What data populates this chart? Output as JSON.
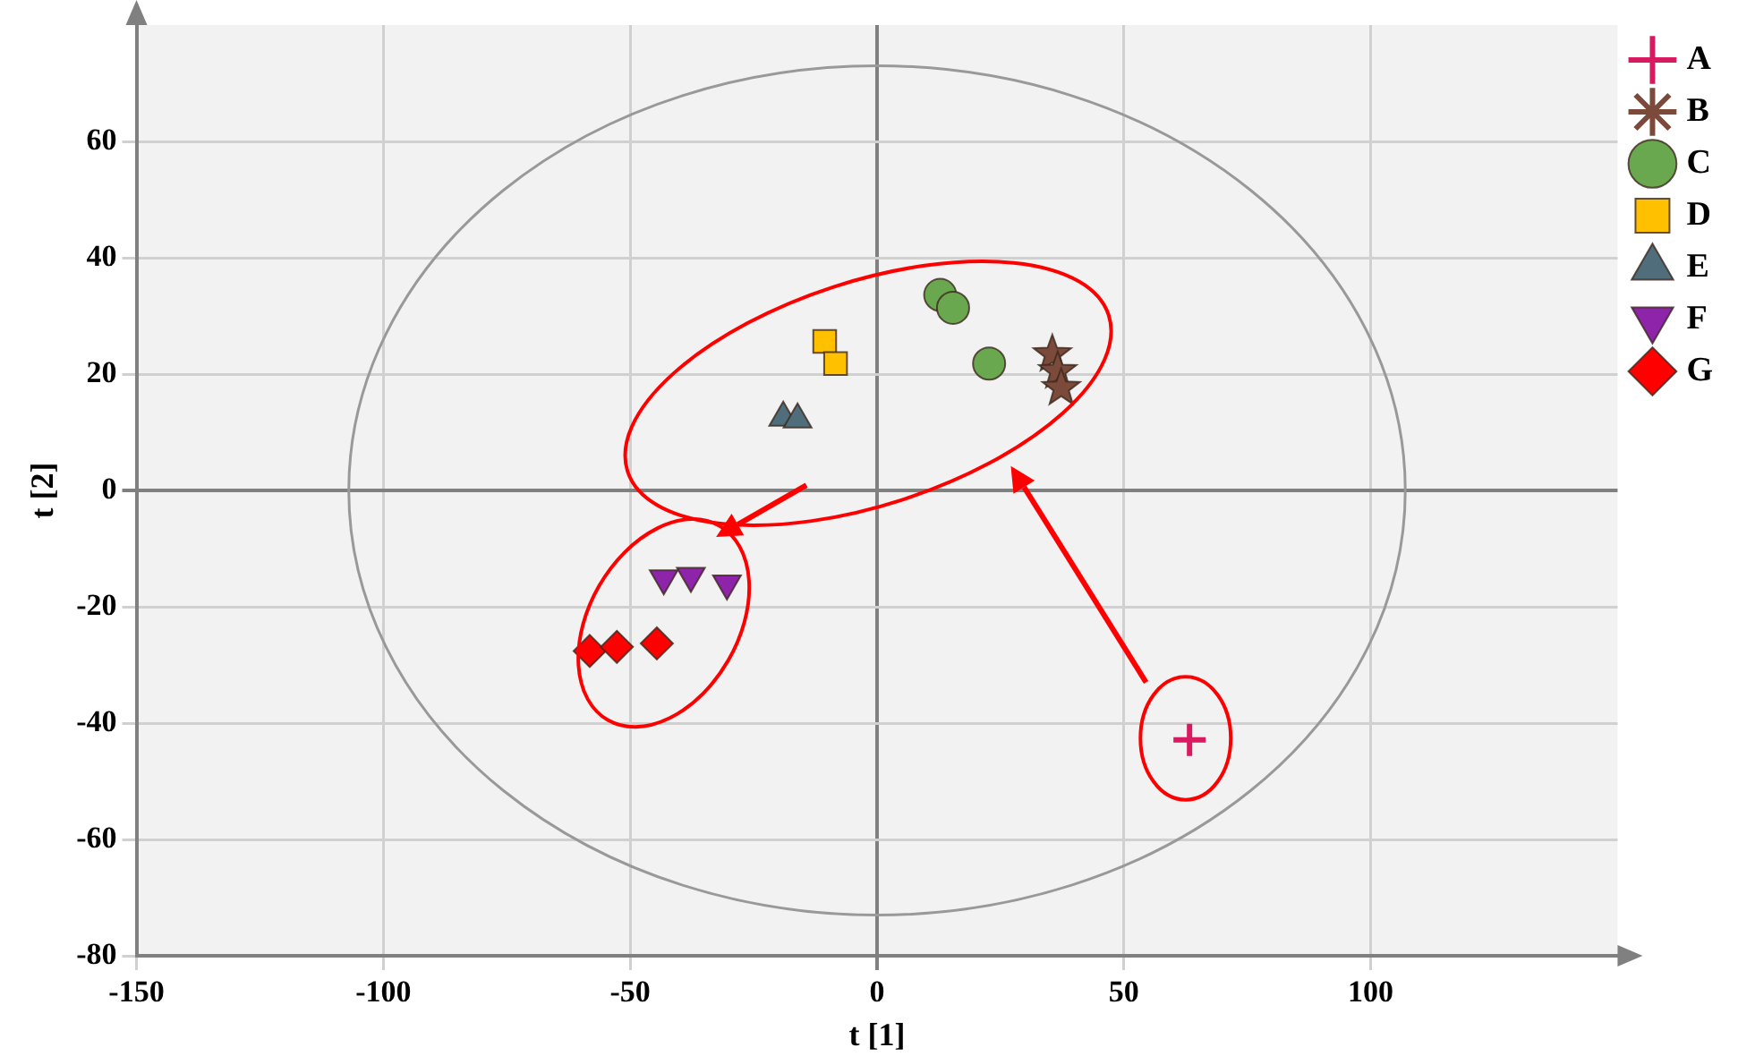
{
  "chart_data": {
    "type": "scatter",
    "xlabel": "t [1]",
    "ylabel": "t [2]",
    "xlim": [
      -150,
      150
    ],
    "ylim": [
      -80,
      80
    ],
    "xticks": [
      -150,
      -100,
      -50,
      0,
      50,
      100
    ],
    "yticks": [
      -80,
      -60,
      -40,
      -20,
      0,
      20,
      40,
      60
    ],
    "grid": true,
    "legend": "top right",
    "series": [
      {
        "name": "A",
        "color": "#d81b60",
        "marker": "cross",
        "x": [
          63.3
        ],
        "values": [
          -42.9
        ]
      },
      {
        "name": "B",
        "color": "#7b4a3a",
        "marker": "star",
        "x": [
          35.5,
          36.6,
          37.3
        ],
        "values": [
          23.4,
          20.5,
          17.6
        ]
      },
      {
        "name": "C",
        "color": "#6aa84f",
        "marker": "circle",
        "x": [
          12.8,
          15.4,
          22.7
        ],
        "values": [
          33.6,
          31.4,
          21.8
        ]
      },
      {
        "name": "D",
        "color": "#ffc000",
        "marker": "square",
        "x": [
          -10.6,
          -8.4
        ],
        "values": [
          25.6,
          21.8
        ]
      },
      {
        "name": "E",
        "color": "#4f6d7a",
        "marker": "triangle",
        "x": [
          -19,
          -16.1
        ],
        "values": [
          12.5,
          12.2
        ]
      },
      {
        "name": "F",
        "color": "#8e24aa",
        "marker": "triangle-down",
        "x": [
          -43.2,
          -37.7,
          -30.4
        ],
        "values": [
          -15.1,
          -14.7,
          -16.0
        ]
      },
      {
        "name": "G",
        "color": "#ff0000",
        "marker": "diamond",
        "x": [
          -58.2,
          -52.7,
          -44.6
        ],
        "values": [
          -27.6,
          -26.9,
          -26.3
        ]
      }
    ]
  }
}
